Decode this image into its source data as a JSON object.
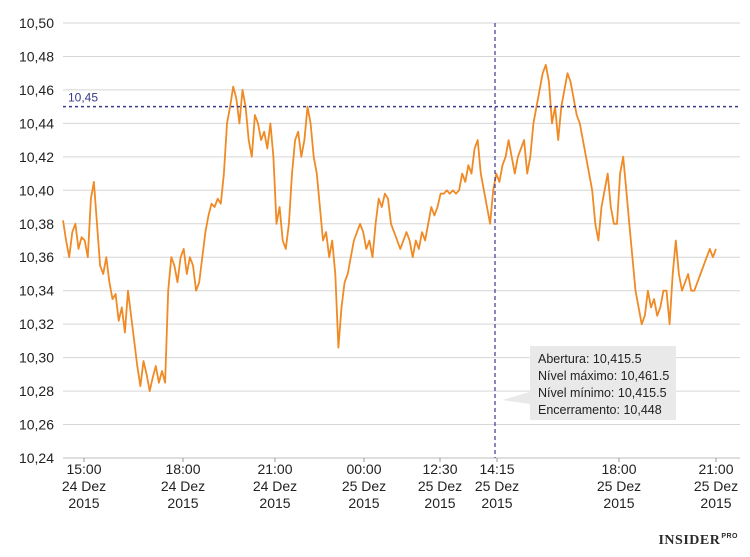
{
  "chart_data": {
    "type": "line",
    "ylim": [
      10.24,
      10.5
    ],
    "y_ticks": [
      "10,50",
      "10,48",
      "10,46",
      "10,44",
      "10,42",
      "10,40",
      "10,38",
      "10,36",
      "10,34",
      "10,32",
      "10,30",
      "10,28",
      "10,26",
      "10,24"
    ],
    "x_ticks": [
      {
        "time": "15:00",
        "date": "24 Dez",
        "year": "2015"
      },
      {
        "time": "18:00",
        "date": "24 Dez",
        "year": "2015"
      },
      {
        "time": "21:00",
        "date": "24 Dez",
        "year": "2015"
      },
      {
        "time": "00:00",
        "date": "25 Dez",
        "year": "2015"
      },
      {
        "time": "12:30",
        "date": "25 Dez",
        "year": "2015"
      },
      {
        "time": "14:15",
        "date": "25 Dez",
        "year": "2015"
      },
      {
        "time": "18:00",
        "date": "25 Dez",
        "year": "2015"
      },
      {
        "time": "21:00",
        "date": "25 Dez",
        "year": "2015"
      }
    ],
    "reference_line": {
      "value": 10.45,
      "label": "10,45",
      "color": "#3a3a8c"
    },
    "marker_line": {
      "at": "14:15 25 Dez 2015",
      "color": "#3a3a8c"
    },
    "series": [
      {
        "color": "#f08a24",
        "values": [
          10.382,
          10.37,
          10.36,
          10.375,
          10.38,
          10.365,
          10.372,
          10.37,
          10.36,
          10.395,
          10.405,
          10.38,
          10.355,
          10.35,
          10.36,
          10.345,
          10.335,
          10.338,
          10.322,
          10.33,
          10.315,
          10.34,
          10.325,
          10.31,
          10.295,
          10.283,
          10.298,
          10.29,
          10.28,
          10.288,
          10.295,
          10.285,
          10.292,
          10.285,
          10.34,
          10.36,
          10.355,
          10.345,
          10.36,
          10.365,
          10.35,
          10.36,
          10.355,
          10.34,
          10.345,
          10.36,
          10.375,
          10.385,
          10.392,
          10.39,
          10.395,
          10.392,
          10.41,
          10.44,
          10.45,
          10.462,
          10.455,
          10.44,
          10.46,
          10.45,
          10.43,
          10.42,
          10.445,
          10.44,
          10.43,
          10.435,
          10.425,
          10.44,
          10.42,
          10.38,
          10.39,
          10.37,
          10.365,
          10.38,
          10.41,
          10.43,
          10.435,
          10.42,
          10.43,
          10.45,
          10.44,
          10.42,
          10.41,
          10.39,
          10.37,
          10.375,
          10.36,
          10.37,
          10.35,
          10.306,
          10.33,
          10.345,
          10.35,
          10.36,
          10.37,
          10.375,
          10.38,
          10.375,
          10.365,
          10.37,
          10.36,
          10.38,
          10.395,
          10.39,
          10.398,
          10.395,
          10.38,
          10.375,
          10.37,
          10.365,
          10.37,
          10.375,
          10.37,
          10.36,
          10.37,
          10.365,
          10.375,
          10.37,
          10.38,
          10.39,
          10.385,
          10.39,
          10.398,
          10.398,
          10.4,
          10.398,
          10.4,
          10.398,
          10.4,
          10.41,
          10.405,
          10.415,
          10.41,
          10.425,
          10.43,
          10.41,
          10.4,
          10.39,
          10.38,
          10.4,
          10.41,
          10.405,
          10.415,
          10.42,
          10.43,
          10.42,
          10.41,
          10.42,
          10.425,
          10.43,
          10.41,
          10.42,
          10.44,
          10.45,
          10.46,
          10.47,
          10.475,
          10.465,
          10.44,
          10.45,
          10.43,
          10.45,
          10.46,
          10.47,
          10.465,
          10.455,
          10.445,
          10.44,
          10.43,
          10.42,
          10.41,
          10.4,
          10.38,
          10.37,
          10.39,
          10.4,
          10.41,
          10.39,
          10.38,
          10.38,
          10.41,
          10.42,
          10.4,
          10.38,
          10.36,
          10.34,
          10.33,
          10.32,
          10.325,
          10.34,
          10.33,
          10.335,
          10.325,
          10.33,
          10.34,
          10.34,
          10.32,
          10.35,
          10.37,
          10.35,
          10.34,
          10.345,
          10.35,
          10.34,
          10.34,
          10.345,
          10.35,
          10.355,
          10.36,
          10.365,
          10.36,
          10.365
        ]
      }
    ],
    "tooltip": {
      "lines": [
        "Abertura: 10,415.5",
        "Nível máximo: 10,461.5",
        "Nível mínimo:  10,415.5",
        "Encerramento: 10,448"
      ]
    }
  },
  "brand": {
    "name": "INSIDER",
    "suffix": "PRO"
  }
}
